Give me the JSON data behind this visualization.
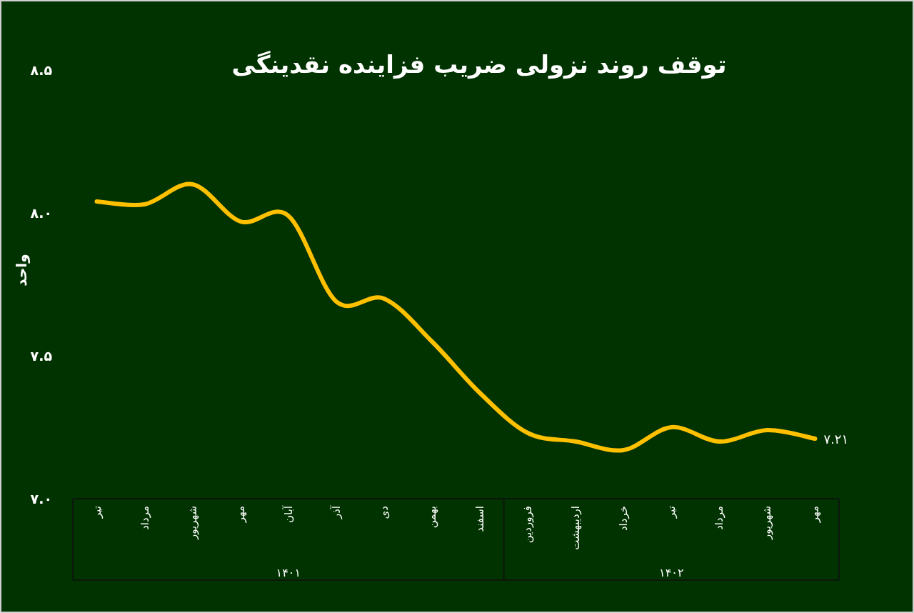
{
  "chart_data": {
    "type": "line",
    "title": "توقف روند نزولی ضریب فزاینده نقدینگی",
    "ylabel": "واحد",
    "categories": [
      "تیر",
      "مرداد",
      "شهریور",
      "مهر",
      "آبان",
      "آذر",
      "دی",
      "بهمن",
      "اسفند",
      "فروردین",
      "اردیبهشت",
      "خرداد",
      "تیر",
      "مرداد",
      "شهریور",
      "مهر"
    ],
    "series": [
      {
        "color": "#ffc000",
        "values": [
          8.04,
          8.03,
          8.1,
          7.97,
          7.99,
          7.69,
          7.7,
          7.55,
          7.37,
          7.23,
          7.2,
          7.17,
          7.25,
          7.2,
          7.24,
          7.21
        ],
        "value_labels": [
          null,
          null,
          null,
          null,
          null,
          null,
          null,
          null,
          null,
          null,
          null,
          null,
          null,
          null,
          null,
          "۷.۲۱"
        ]
      }
    ],
    "ylim": [
      7,
      8.5
    ],
    "yticks": [
      {
        "value": 7,
        "label": "۷.۰"
      },
      {
        "value": 7.5,
        "label": "۷.۵"
      },
      {
        "value": 8,
        "label": "۸.۰"
      },
      {
        "value": 8.5,
        "label": "۸.۵"
      }
    ],
    "annotations": [
      "۱۴۰۱",
      "۱۴۰۲"
    ],
    "marker": "none",
    "line_style": "solid"
  }
}
